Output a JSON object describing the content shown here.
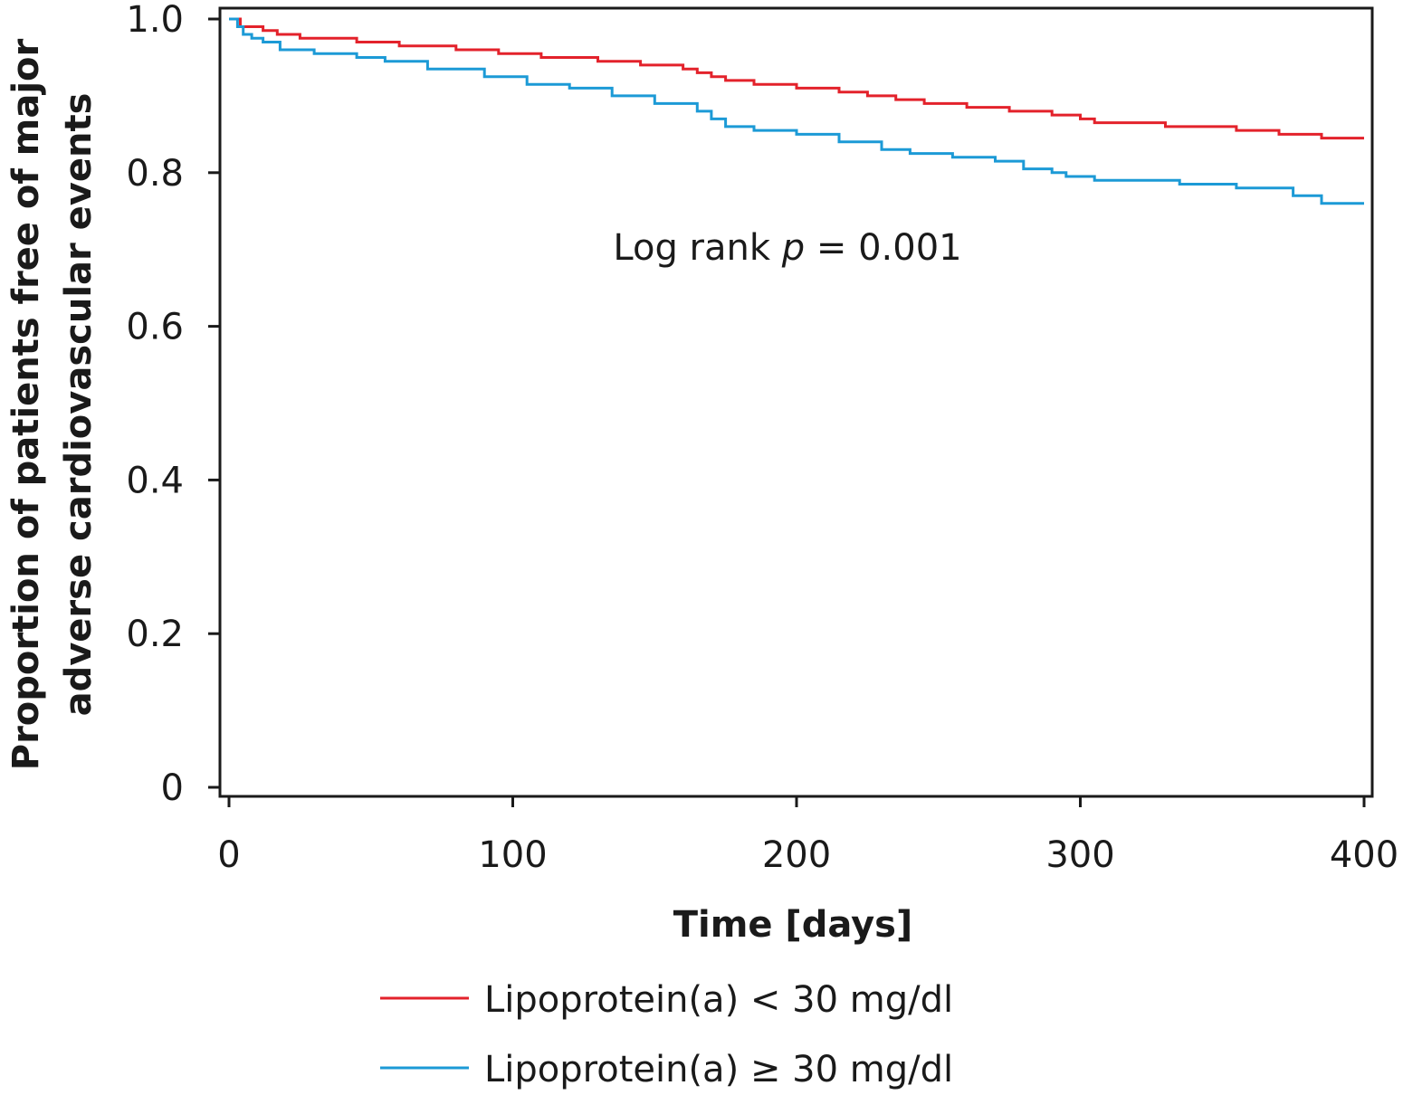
{
  "chart_data": {
    "type": "line",
    "step": true,
    "xlabel": "Time [days]",
    "ylabel_lines": [
      "Proportion of patients free of major",
      "adverse cardiovascular events"
    ],
    "xlim": [
      0,
      400
    ],
    "ylim": [
      0,
      1.0
    ],
    "xticks": [
      0,
      100,
      200,
      300,
      400
    ],
    "xtick_labels": [
      "0",
      "100",
      "200",
      "300",
      "400"
    ],
    "yticks": [
      0,
      0.2,
      0.4,
      0.6,
      0.8,
      1.0
    ],
    "ytick_labels": [
      "0",
      "0.2",
      "0.4",
      "0.6",
      "0.8",
      "1.0"
    ],
    "grid": false,
    "legend_position": "bottom",
    "annotation": {
      "prefix": "Log rank ",
      "italic": "p",
      "suffix": " = 0.001"
    },
    "series": [
      {
        "name": "Lipoprotein(a) < 30 mg/dl",
        "color": "#e3222b",
        "x": [
          0,
          3,
          4,
          12,
          17,
          25,
          45,
          60,
          80,
          95,
          110,
          130,
          145,
          160,
          165,
          170,
          175,
          185,
          200,
          215,
          225,
          235,
          245,
          260,
          275,
          290,
          300,
          305,
          330,
          355,
          370,
          385,
          400
        ],
        "y": [
          1.0,
          1.0,
          0.99,
          0.985,
          0.98,
          0.975,
          0.97,
          0.965,
          0.96,
          0.955,
          0.95,
          0.945,
          0.94,
          0.935,
          0.93,
          0.925,
          0.92,
          0.915,
          0.91,
          0.905,
          0.9,
          0.895,
          0.89,
          0.885,
          0.88,
          0.875,
          0.87,
          0.865,
          0.86,
          0.855,
          0.85,
          0.845,
          0.845
        ]
      },
      {
        "name": "Lipoprotein(a) ≥ 30 mg/dl",
        "color": "#1c9ad6",
        "x": [
          0,
          3,
          5,
          8,
          12,
          18,
          30,
          45,
          55,
          70,
          90,
          105,
          120,
          135,
          150,
          165,
          170,
          175,
          185,
          200,
          215,
          230,
          240,
          255,
          270,
          280,
          290,
          295,
          305,
          335,
          355,
          375,
          385,
          400
        ],
        "y": [
          1.0,
          0.99,
          0.98,
          0.975,
          0.97,
          0.96,
          0.955,
          0.95,
          0.945,
          0.935,
          0.925,
          0.915,
          0.91,
          0.9,
          0.89,
          0.88,
          0.87,
          0.86,
          0.855,
          0.85,
          0.84,
          0.83,
          0.825,
          0.82,
          0.815,
          0.805,
          0.8,
          0.795,
          0.79,
          0.785,
          0.78,
          0.77,
          0.76,
          0.76
        ]
      }
    ]
  }
}
